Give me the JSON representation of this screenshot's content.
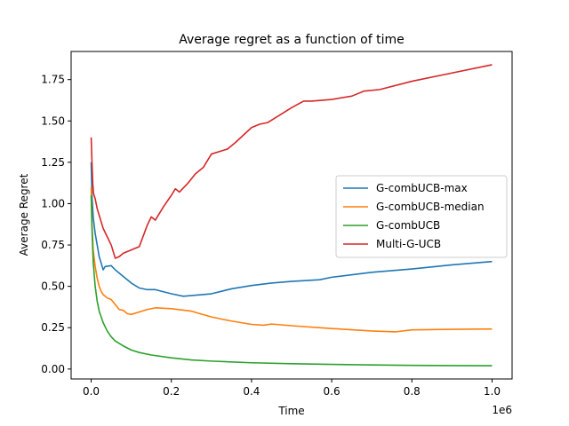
{
  "chart_data": {
    "type": "line",
    "title": "Average regret as a function of time",
    "xlabel": "Time",
    "ylabel": "Average Regret",
    "x_offset_label": "1e6",
    "xlim": [
      -0.05,
      1.05
    ],
    "ylim": [
      -0.06,
      1.92
    ],
    "x_ticks": [
      0.0,
      0.2,
      0.4,
      0.6,
      0.8,
      1.0
    ],
    "x_tick_labels": [
      "0.0",
      "0.2",
      "0.4",
      "0.6",
      "0.8",
      "1.0"
    ],
    "y_ticks": [
      0.0,
      0.25,
      0.5,
      0.75,
      1.0,
      1.25,
      1.5,
      1.75
    ],
    "y_tick_labels": [
      "0.00",
      "0.25",
      "0.50",
      "0.75",
      "1.00",
      "1.25",
      "1.50",
      "1.75"
    ],
    "grid": false,
    "legend_position": "center-right",
    "series": [
      {
        "name": "G-combUCB-max",
        "color": "#1f77b4",
        "points": [
          [
            0.0,
            1.25
          ],
          [
            0.002,
            1.05
          ],
          [
            0.005,
            0.92
          ],
          [
            0.01,
            0.82
          ],
          [
            0.015,
            0.75
          ],
          [
            0.02,
            0.68
          ],
          [
            0.025,
            0.64
          ],
          [
            0.03,
            0.6
          ],
          [
            0.035,
            0.62
          ],
          [
            0.05,
            0.625
          ],
          [
            0.06,
            0.6
          ],
          [
            0.08,
            0.56
          ],
          [
            0.1,
            0.52
          ],
          [
            0.12,
            0.49
          ],
          [
            0.14,
            0.48
          ],
          [
            0.16,
            0.48
          ],
          [
            0.2,
            0.455
          ],
          [
            0.23,
            0.44
          ],
          [
            0.3,
            0.455
          ],
          [
            0.35,
            0.485
          ],
          [
            0.4,
            0.505
          ],
          [
            0.45,
            0.52
          ],
          [
            0.5,
            0.53
          ],
          [
            0.57,
            0.54
          ],
          [
            0.6,
            0.555
          ],
          [
            0.7,
            0.585
          ],
          [
            0.8,
            0.605
          ],
          [
            0.9,
            0.63
          ],
          [
            1.0,
            0.65
          ]
        ]
      },
      {
        "name": "G-combUCB-median",
        "color": "#ff7f0e",
        "points": [
          [
            0.0,
            1.1
          ],
          [
            0.002,
            0.88
          ],
          [
            0.005,
            0.72
          ],
          [
            0.01,
            0.62
          ],
          [
            0.015,
            0.55
          ],
          [
            0.02,
            0.5
          ],
          [
            0.025,
            0.47
          ],
          [
            0.03,
            0.45
          ],
          [
            0.04,
            0.43
          ],
          [
            0.05,
            0.42
          ],
          [
            0.06,
            0.39
          ],
          [
            0.07,
            0.36
          ],
          [
            0.08,
            0.355
          ],
          [
            0.09,
            0.335
          ],
          [
            0.1,
            0.33
          ],
          [
            0.12,
            0.345
          ],
          [
            0.14,
            0.36
          ],
          [
            0.16,
            0.37
          ],
          [
            0.2,
            0.365
          ],
          [
            0.25,
            0.35
          ],
          [
            0.3,
            0.315
          ],
          [
            0.35,
            0.29
          ],
          [
            0.4,
            0.27
          ],
          [
            0.43,
            0.265
          ],
          [
            0.45,
            0.272
          ],
          [
            0.5,
            0.262
          ],
          [
            0.6,
            0.245
          ],
          [
            0.7,
            0.23
          ],
          [
            0.76,
            0.225
          ],
          [
            0.8,
            0.237
          ],
          [
            0.9,
            0.24
          ],
          [
            1.0,
            0.242
          ]
        ]
      },
      {
        "name": "G-combUCB",
        "color": "#2ca02c",
        "points": [
          [
            0.0,
            1.05
          ],
          [
            0.002,
            0.85
          ],
          [
            0.005,
            0.65
          ],
          [
            0.01,
            0.5
          ],
          [
            0.015,
            0.41
          ],
          [
            0.02,
            0.35
          ],
          [
            0.03,
            0.28
          ],
          [
            0.04,
            0.23
          ],
          [
            0.05,
            0.195
          ],
          [
            0.06,
            0.17
          ],
          [
            0.08,
            0.14
          ],
          [
            0.1,
            0.115
          ],
          [
            0.12,
            0.1
          ],
          [
            0.15,
            0.085
          ],
          [
            0.2,
            0.068
          ],
          [
            0.25,
            0.055
          ],
          [
            0.3,
            0.048
          ],
          [
            0.4,
            0.038
          ],
          [
            0.5,
            0.032
          ],
          [
            0.6,
            0.028
          ],
          [
            0.7,
            0.025
          ],
          [
            0.8,
            0.022
          ],
          [
            0.9,
            0.021
          ],
          [
            1.0,
            0.02
          ]
        ]
      },
      {
        "name": "Multi-G-UCB",
        "color": "#d62728",
        "points": [
          [
            0.0,
            1.4
          ],
          [
            0.002,
            1.25
          ],
          [
            0.004,
            1.12
          ],
          [
            0.006,
            1.06
          ],
          [
            0.01,
            1.03
          ],
          [
            0.015,
            0.97
          ],
          [
            0.02,
            0.93
          ],
          [
            0.03,
            0.85
          ],
          [
            0.04,
            0.8
          ],
          [
            0.05,
            0.75
          ],
          [
            0.06,
            0.67
          ],
          [
            0.07,
            0.68
          ],
          [
            0.08,
            0.7
          ],
          [
            0.1,
            0.72
          ],
          [
            0.12,
            0.74
          ],
          [
            0.14,
            0.87
          ],
          [
            0.15,
            0.92
          ],
          [
            0.16,
            0.9
          ],
          [
            0.18,
            0.98
          ],
          [
            0.2,
            1.05
          ],
          [
            0.21,
            1.09
          ],
          [
            0.22,
            1.07
          ],
          [
            0.24,
            1.12
          ],
          [
            0.26,
            1.18
          ],
          [
            0.28,
            1.22
          ],
          [
            0.3,
            1.3
          ],
          [
            0.34,
            1.33
          ],
          [
            0.36,
            1.37
          ],
          [
            0.4,
            1.46
          ],
          [
            0.42,
            1.48
          ],
          [
            0.44,
            1.49
          ],
          [
            0.5,
            1.58
          ],
          [
            0.53,
            1.62
          ],
          [
            0.55,
            1.62
          ],
          [
            0.6,
            1.63
          ],
          [
            0.65,
            1.65
          ],
          [
            0.68,
            1.68
          ],
          [
            0.72,
            1.69
          ],
          [
            0.8,
            1.74
          ],
          [
            0.9,
            1.79
          ],
          [
            1.0,
            1.84
          ]
        ]
      }
    ]
  }
}
